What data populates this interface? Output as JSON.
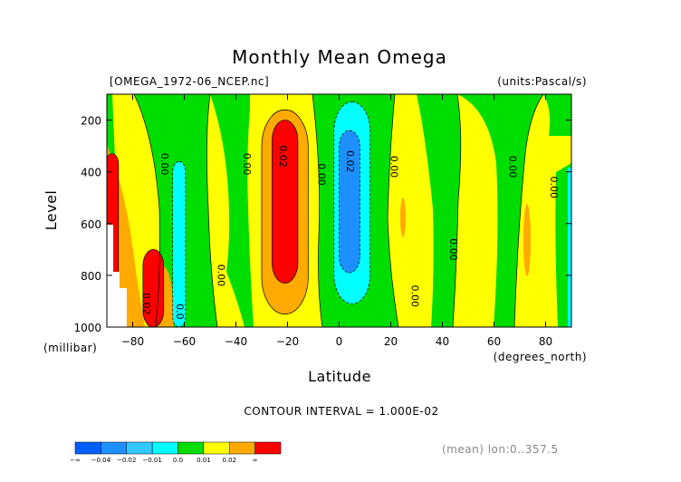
{
  "chart_data": {
    "type": "heatmap",
    "title": "Monthly Mean Omega",
    "file_label": "[OMEGA_1972-06_NCEP.nc]",
    "units_label": "(units:Pascal/s)",
    "xlabel": "Latitude",
    "x_units": "(degrees_north)",
    "ylabel": "Level",
    "y_units": "(millibar)",
    "xlim": [
      -90,
      90
    ],
    "ylim": [
      1000,
      100
    ],
    "x_ticks": [
      -80,
      -60,
      -40,
      -20,
      0,
      20,
      40,
      60,
      80
    ],
    "y_ticks": [
      200,
      400,
      600,
      800,
      1000
    ],
    "contour_interval_text": "CONTOUR INTERVAL = 1.000E-02",
    "footer_text": "(mean) lon:0..357.5",
    "colorbar": {
      "labels": [
        "-∞",
        "-0.04",
        "-0.02",
        "-0.01",
        "0.0",
        "0.01",
        "0.02",
        "∞"
      ],
      "colors": [
        "#0060ff",
        "#1e8fff",
        "#33c8ff",
        "#00ffff",
        "#00dd00",
        "#ffff00",
        "#ffaa00",
        "#ff0000"
      ]
    },
    "contour_labels": [
      {
        "text": "0.00",
        "lat": -69,
        "lev": 370
      },
      {
        "text": "0.00",
        "lat": -37,
        "lev": 370
      },
      {
        "text": "0.02",
        "lat": -23,
        "lev": 340
      },
      {
        "text": "0.00",
        "lat": -8,
        "lev": 410
      },
      {
        "text": "0.02",
        "lat": 3,
        "lev": 360
      },
      {
        "text": "0.00",
        "lat": 20,
        "lev": 380
      },
      {
        "text": "0.00",
        "lat": 66,
        "lev": 380
      },
      {
        "text": "0.00",
        "lat": 82,
        "lev": 460
      },
      {
        "text": "0.00",
        "lat": -47,
        "lev": 800
      },
      {
        "text": "0.00",
        "lat": 43,
        "lev": 700
      },
      {
        "text": "0.00",
        "lat": 28,
        "lev": 880
      },
      {
        "text": "0.02",
        "lat": -76,
        "lev": 910
      },
      {
        "text": "0.0",
        "lat": -63,
        "lev": 940
      }
    ],
    "fields": [
      {
        "level": "0.02",
        "lat_center": -21,
        "lat_half_width": 5,
        "lev_top": 200,
        "lev_bottom": 830
      },
      {
        "level": "0.01",
        "lat_center": -21,
        "lat_half_width": 9,
        "lev_top": 160,
        "lev_bottom": 950
      },
      {
        "level": "-0.02",
        "lat_center": 4,
        "lat_half_width": 4,
        "lev_top": 240,
        "lev_bottom": 790
      },
      {
        "level": "-0.01",
        "lat_center": 5,
        "lat_half_width": 7,
        "lev_top": 130,
        "lev_bottom": 910
      },
      {
        "level": "-0.01",
        "lat_center": -62,
        "lat_half_width": 2.5,
        "lev_top": 360,
        "lev_bottom": 1000
      },
      {
        "level": "0.02",
        "lat_center": -72,
        "lat_half_width": 4,
        "lev_top": 700,
        "lev_bottom": 1000
      },
      {
        "level": "0.02",
        "lat_center": -88,
        "lat_half_width": 2.5,
        "lev_top": 330,
        "lev_bottom": 1000
      }
    ]
  }
}
